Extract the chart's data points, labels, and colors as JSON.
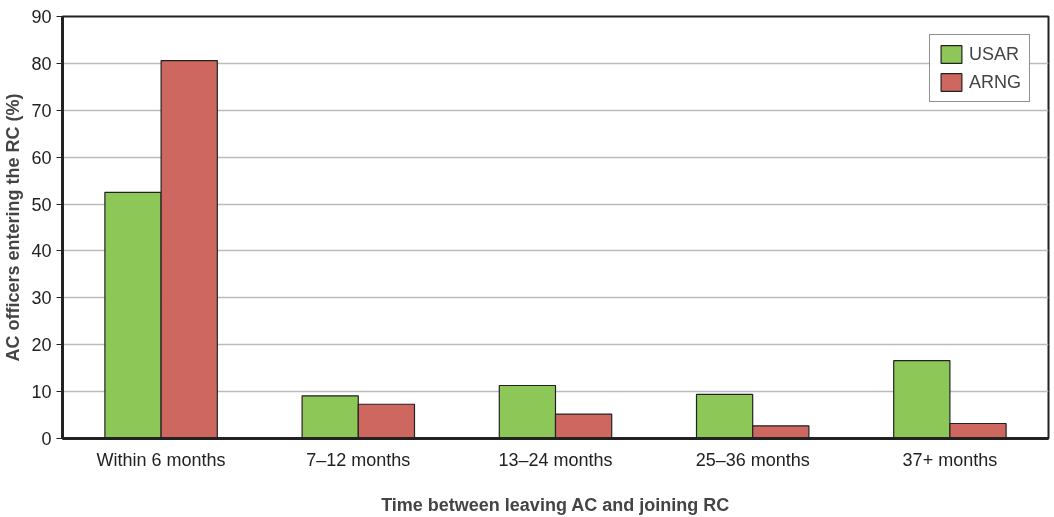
{
  "chart_data": {
    "type": "bar",
    "xlabel": "Time between leaving AC and joining RC",
    "ylabel": "AC officers entering the RC (%)",
    "categories": [
      "Within 6 months",
      "7–12 months",
      "13–24 months",
      "25–36 months",
      "37+ months"
    ],
    "series": [
      {
        "name": "USAR",
        "color": "#8dc757",
        "values": [
          52.5,
          9.1,
          11.3,
          9.4,
          16.6
        ]
      },
      {
        "name": "ARNG",
        "color": "#cd6760",
        "values": [
          80.6,
          7.3,
          5.2,
          2.7,
          3.2
        ]
      }
    ],
    "ylim": [
      0,
      90
    ],
    "yticks": [
      0,
      10,
      20,
      30,
      40,
      50,
      60,
      70,
      80,
      90
    ],
    "grid": "y",
    "legend": "top right"
  }
}
